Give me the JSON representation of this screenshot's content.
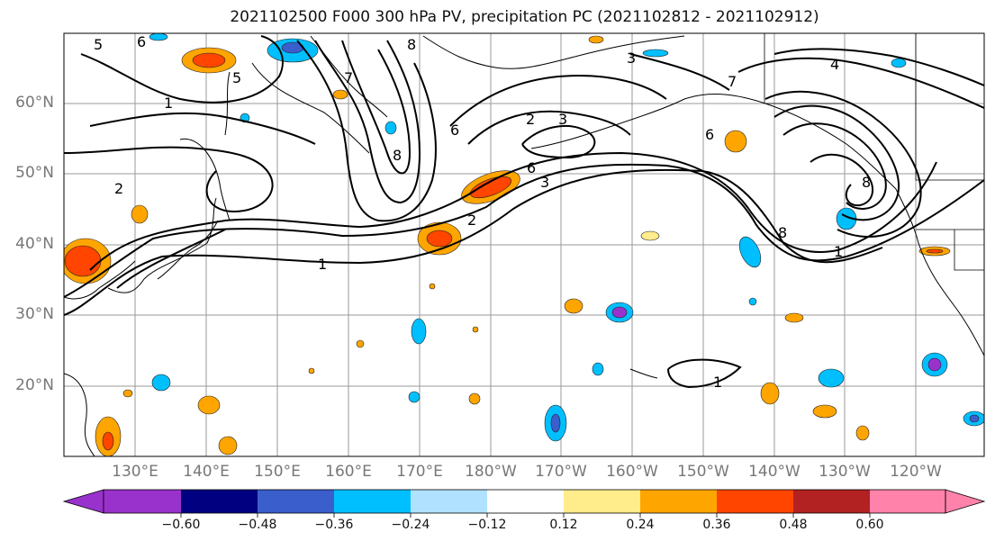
{
  "title": "2021102500 F000 300 hPa PV, precipitation PC (2021102812 - 2021102912)",
  "lat_labels": [
    "60°N",
    "50°N",
    "40°N",
    "30°N",
    "20°N"
  ],
  "lon_labels": [
    "130°E",
    "140°E",
    "150°E",
    "160°E",
    "170°E",
    "180°W",
    "170°W",
    "160°W",
    "150°W",
    "140°W",
    "130°W",
    "120°W"
  ],
  "colorbar": {
    "tick_labels": [
      "−0.60",
      "−0.48",
      "−0.36",
      "−0.24",
      "−0.12",
      "0.12",
      "0.24",
      "0.36",
      "0.48",
      "0.60"
    ],
    "colors": [
      "#9932cc",
      "#000080",
      "#3a5fcd",
      "#00bfff",
      "#b0e2ff",
      "#ffffff",
      "#ffec8b",
      "#ffa500",
      "#ff4500",
      "#b22222",
      "#ff82ab"
    ]
  },
  "contour_labels": [
    "1",
    "1",
    "1",
    "1",
    "2",
    "2",
    "2",
    "3",
    "3",
    "3",
    "4",
    "5",
    "5",
    "6",
    "6",
    "6",
    "6",
    "7",
    "7",
    "8",
    "8",
    "8",
    "8"
  ],
  "colors": {
    "positive_precip": "#ffa500",
    "negative_precip": "#00bfff",
    "contour": "#000000",
    "grid": "#999999"
  }
}
